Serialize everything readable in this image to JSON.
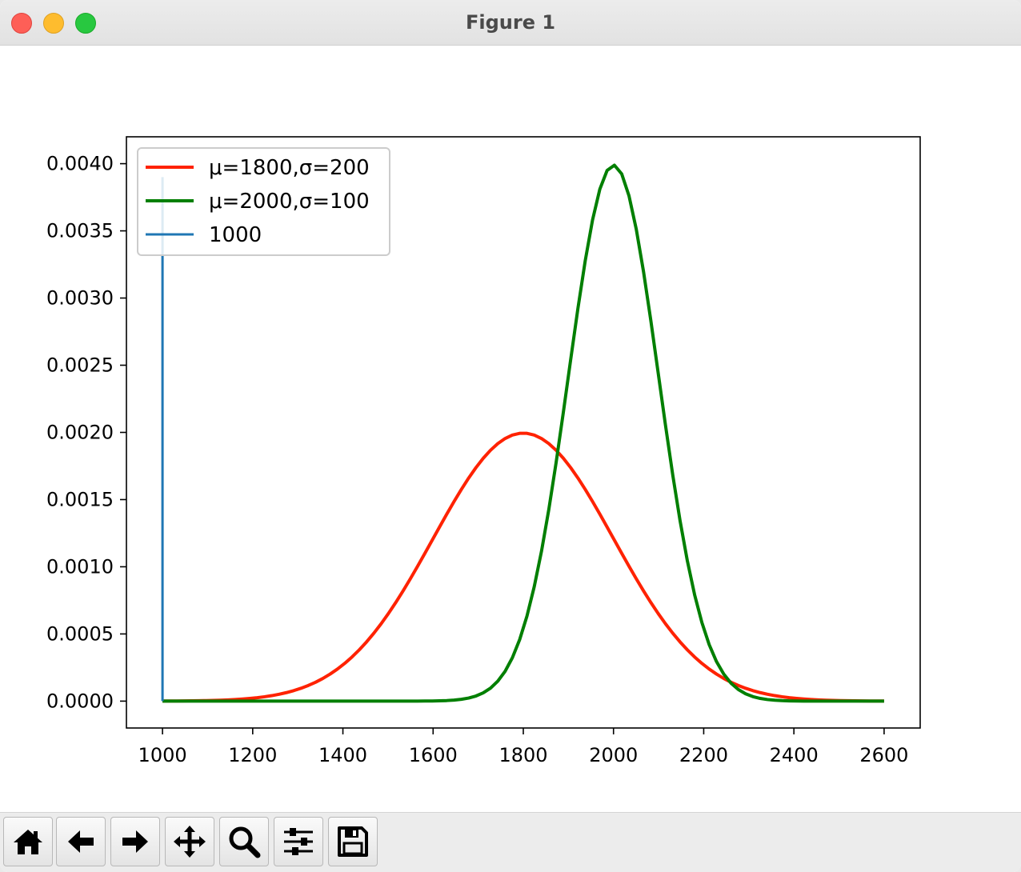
{
  "window": {
    "title": "Figure 1"
  },
  "toolbar": {
    "buttons": [
      {
        "name": "home-button",
        "icon": "home-icon"
      },
      {
        "name": "back-button",
        "icon": "arrow-left-icon"
      },
      {
        "name": "forward-button",
        "icon": "arrow-right-icon"
      },
      {
        "name": "pan-button",
        "icon": "move-icon"
      },
      {
        "name": "zoom-button",
        "icon": "magnifier-icon"
      },
      {
        "name": "configure-subplots-button",
        "icon": "sliders-icon"
      },
      {
        "name": "save-button",
        "icon": "floppy-disk-icon"
      }
    ]
  },
  "chart_data": {
    "type": "line",
    "title": "",
    "xlabel": "",
    "ylabel": "",
    "xlim": [
      920,
      2680
    ],
    "ylim": [
      -0.0002,
      0.0042
    ],
    "x_ticks": [
      1000,
      1200,
      1400,
      1600,
      1800,
      2000,
      2200,
      2400,
      2600
    ],
    "x_tick_labels": [
      "1000",
      "1200",
      "1400",
      "1600",
      "1800",
      "2000",
      "2200",
      "2400",
      "2600"
    ],
    "y_ticks": [
      0,
      0.0005,
      0.001,
      0.0015,
      0.002,
      0.0025,
      0.003,
      0.0035,
      0.004
    ],
    "y_tick_labels": [
      "0.0000",
      "0.0005",
      "0.0010",
      "0.0015",
      "0.0020",
      "0.0025",
      "0.0030",
      "0.0035",
      "0.0040"
    ],
    "grid": false,
    "legend_position": "upper-left",
    "series": [
      {
        "name": "μ=1800,σ=200",
        "color": "#ff2200",
        "kind": "normal-pdf",
        "mu": 1800,
        "sigma": 200,
        "x": [
          1000,
          1100,
          1200,
          1300,
          1400,
          1500,
          1600,
          1700,
          1800,
          1900,
          2000,
          2100,
          2200,
          2300,
          2400,
          2500,
          2600
        ],
        "y": [
          7e-07,
          4.4e-06,
          2.22e-05,
          8.76e-05,
          0.00027,
          0.000648,
          0.00121,
          0.00176,
          0.001995,
          0.00176,
          0.00121,
          0.000648,
          0.00027,
          8.76e-05,
          2.22e-05,
          4.4e-06,
          7e-07
        ]
      },
      {
        "name": "μ=2000,σ=100",
        "color": "#007f00",
        "kind": "normal-pdf",
        "mu": 2000,
        "sigma": 100,
        "x": [
          1000,
          1600,
          1700,
          1800,
          1850,
          1900,
          1950,
          2000,
          2050,
          2100,
          2150,
          2200,
          2300,
          2400,
          2600
        ],
        "y": [
          0,
          1.3e-06,
          4.43e-05,
          0.00054,
          0.0013,
          0.00242,
          0.00352,
          0.00399,
          0.00352,
          0.00242,
          0.0013,
          0.00054,
          4.43e-05,
          1.3e-06,
          0
        ]
      },
      {
        "name": "1000",
        "color": "#1f77b4",
        "kind": "vertical-line",
        "x": [
          1000,
          1000
        ],
        "y": [
          0,
          0.0039
        ]
      }
    ]
  }
}
